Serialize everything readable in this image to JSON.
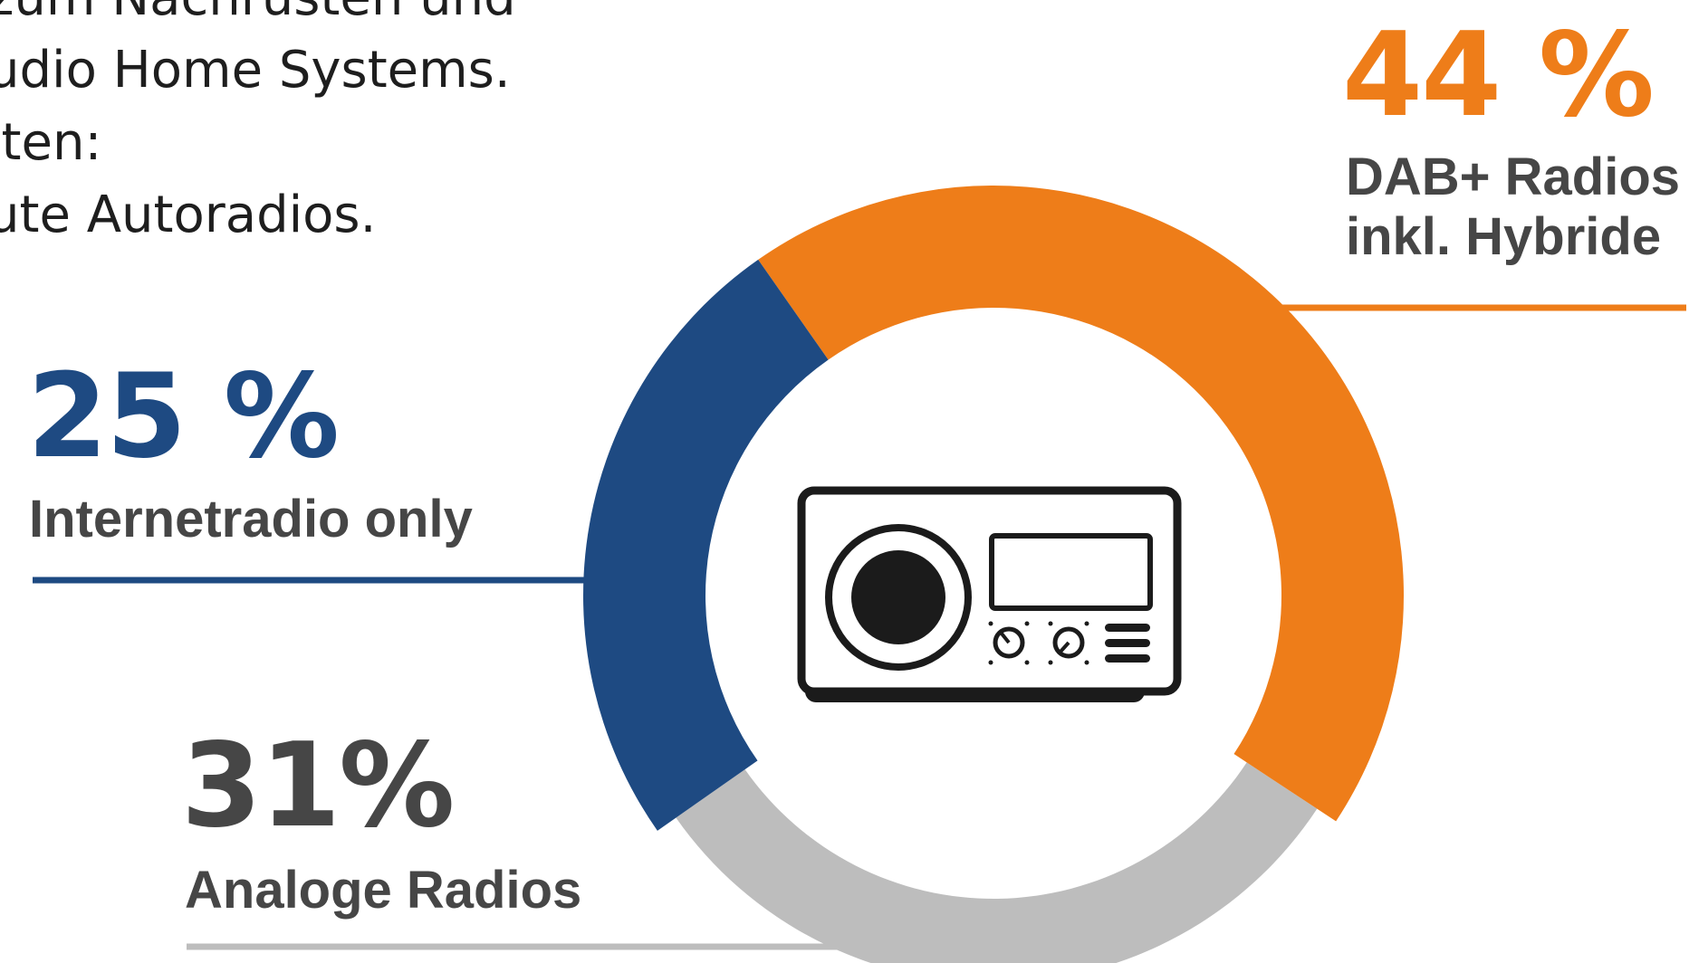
{
  "intro": {
    "lines": [
      "zum Nachrüsten und",
      "udio Home Systems.",
      "lten:",
      "ute Autoradios."
    ]
  },
  "colors": {
    "dab": "#ee7d19",
    "internet": "#1e4a82",
    "analog": "#bdbdbd",
    "label": "#464646",
    "icon": "#1b1b1b"
  },
  "icon": "radio-icon",
  "chart_data": {
    "type": "pie",
    "style": "donut",
    "categories": [
      "DAB+ Radios inkl. Hybride",
      "Internetradio only",
      "Analoge Radios"
    ],
    "values": [
      44,
      25,
      31
    ],
    "unit": "%",
    "labels": [
      {
        "value": "44 %",
        "text": [
          "DAB+ Radios",
          "inkl. Hybride"
        ]
      },
      {
        "value": "25 %",
        "text": [
          "Internetradio only"
        ]
      },
      {
        "value": "31%",
        "text": [
          "Analoge Radios"
        ]
      }
    ]
  }
}
